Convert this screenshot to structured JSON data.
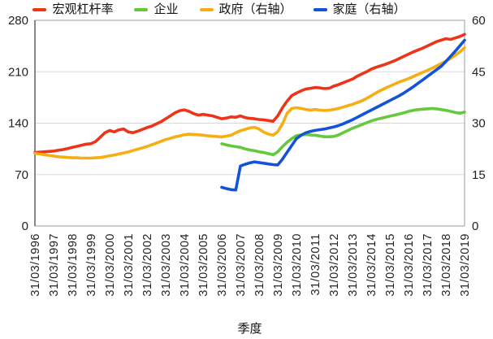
{
  "chart_data": {
    "type": "line",
    "title": "",
    "xlabel": "季度",
    "legend_position": "top",
    "grid": true,
    "legend": [
      "宏观杠杆率",
      "企业",
      "政府（右轴）",
      "家庭（右轴）"
    ],
    "x_tick_labels": [
      "31/03/1996",
      "31/03/1997",
      "31/03/1998",
      "31/03/1999",
      "31/03/2000",
      "31/03/2001",
      "31/03/2002",
      "31/03/2003",
      "31/03/2004",
      "31/03/2005",
      "31/03/2006",
      "31/03/2007",
      "31/03/2008",
      "31/03/2009",
      "31/03/2010",
      "31/03/2011",
      "31/03/2012",
      "31/03/2013",
      "31/03/2014",
      "31/03/2015",
      "31/03/2016",
      "31/03/2017",
      "31/03/2018",
      "31/03/2019"
    ],
    "quarters_per_tick": 4,
    "axes": {
      "left": {
        "min": 0,
        "max": 280,
        "ticks": [
          0,
          70,
          140,
          210,
          280
        ]
      },
      "right": {
        "min": 0,
        "max": 60,
        "ticks": [
          0,
          15,
          30,
          45,
          60
        ]
      }
    },
    "colors": {
      "macro": "#ed3419",
      "enterprise": "#64c93c",
      "government": "#f5ae13",
      "household": "#1353d8",
      "gridline": "#d8d8d8",
      "axis_border": "#9b9b9b",
      "tick_text": "#222222"
    },
    "series": [
      {
        "name": "宏观杠杆率",
        "key": "macro",
        "color": "#ed3419",
        "axis": "left",
        "start_quarter_index": 0,
        "values": [
          100,
          100.5,
          101,
          101.5,
          102,
          103,
          104,
          105.5,
          107,
          108.5,
          110,
          111.5,
          112,
          115,
          121,
          127,
          130,
          128,
          131,
          132,
          128,
          127,
          129,
          131.5,
          134,
          136,
          139,
          142,
          146,
          150,
          154,
          157,
          158,
          156,
          153,
          151,
          152,
          151,
          150,
          148,
          146,
          147,
          148.5,
          148,
          150,
          147.5,
          146.5,
          146,
          145,
          144.5,
          143.5,
          142.5,
          150,
          161,
          170,
          177.5,
          181,
          184,
          186.5,
          187.5,
          188.5,
          188,
          187,
          187.5,
          190.5,
          192.5,
          195,
          197.5,
          200,
          204,
          207,
          210,
          213.5,
          216,
          218,
          220,
          222.5,
          225,
          228,
          231,
          234,
          237,
          239.5,
          242,
          245,
          248,
          251,
          253,
          255,
          254,
          256,
          258,
          261
        ]
      },
      {
        "name": "企业",
        "key": "enterprise",
        "color": "#64c93c",
        "axis": "left",
        "start_quarter_index": 40,
        "values": [
          112,
          110.5,
          109,
          108,
          107,
          105,
          103.5,
          102.5,
          101,
          100,
          98.5,
          97,
          101,
          108,
          114,
          119,
          123,
          124,
          124.5,
          124,
          123.5,
          122.5,
          121.5,
          121.5,
          122,
          124,
          127,
          130,
          133,
          135.5,
          138,
          140.5,
          143,
          145,
          146.5,
          148,
          149.5,
          151,
          152.5,
          154,
          156,
          157.5,
          158.5,
          159,
          159.5,
          160,
          159.5,
          158.5,
          157.5,
          156,
          154.5,
          153.5,
          155
        ]
      },
      {
        "name": "政府（右轴）",
        "key": "government",
        "color": "#f5ae13",
        "axis": "right",
        "start_quarter_index": 0,
        "values": [
          21.2,
          21,
          20.8,
          20.6,
          20.4,
          20.2,
          20.1,
          20,
          19.9,
          19.9,
          19.8,
          19.8,
          19.8,
          19.9,
          20,
          20.2,
          20.5,
          20.7,
          21,
          21.3,
          21.6,
          22,
          22.4,
          22.8,
          23.2,
          23.7,
          24.2,
          24.7,
          25.2,
          25.6,
          26,
          26.3,
          26.6,
          26.8,
          26.7,
          26.6,
          26.5,
          26.3,
          26.2,
          26.1,
          26,
          26.2,
          26.5,
          27.2,
          27.8,
          28.2,
          28.6,
          28.8,
          28.3,
          27.4,
          26.8,
          26.5,
          27.5,
          29.8,
          32.9,
          34.3,
          34.5,
          34.3,
          34,
          33.8,
          34,
          33.8,
          33.7,
          33.8,
          34,
          34.3,
          34.7,
          35.1,
          35.5,
          36,
          36.5,
          37.2,
          38,
          38.8,
          39.5,
          40.2,
          40.8,
          41.4,
          42,
          42.5,
          43,
          43.6,
          44.2,
          44.8,
          45.4,
          46,
          46.7,
          47.4,
          48.1,
          48.9,
          49.8,
          50.8,
          52
        ]
      },
      {
        "name": "家庭（右轴）",
        "key": "household",
        "color": "#1353d8",
        "axis": "right",
        "start_quarter_index": 40,
        "values": [
          11.3,
          10.9,
          10.6,
          10.5,
          17.5,
          18,
          18.4,
          18.7,
          18.5,
          18.3,
          18.1,
          17.9,
          17.8,
          19.5,
          21.5,
          23.5,
          25.5,
          26.5,
          27.2,
          27.6,
          27.9,
          28.1,
          28.3,
          28.6,
          28.9,
          29.3,
          29.8,
          30.4,
          31,
          31.7,
          32.4,
          33.1,
          33.8,
          34.5,
          35.2,
          35.9,
          36.6,
          37.3,
          38,
          38.8,
          39.7,
          40.6,
          41.6,
          42.6,
          43.6,
          44.6,
          45.6,
          46.6,
          48,
          49.5,
          51,
          52.6,
          54.2
        ]
      }
    ]
  }
}
